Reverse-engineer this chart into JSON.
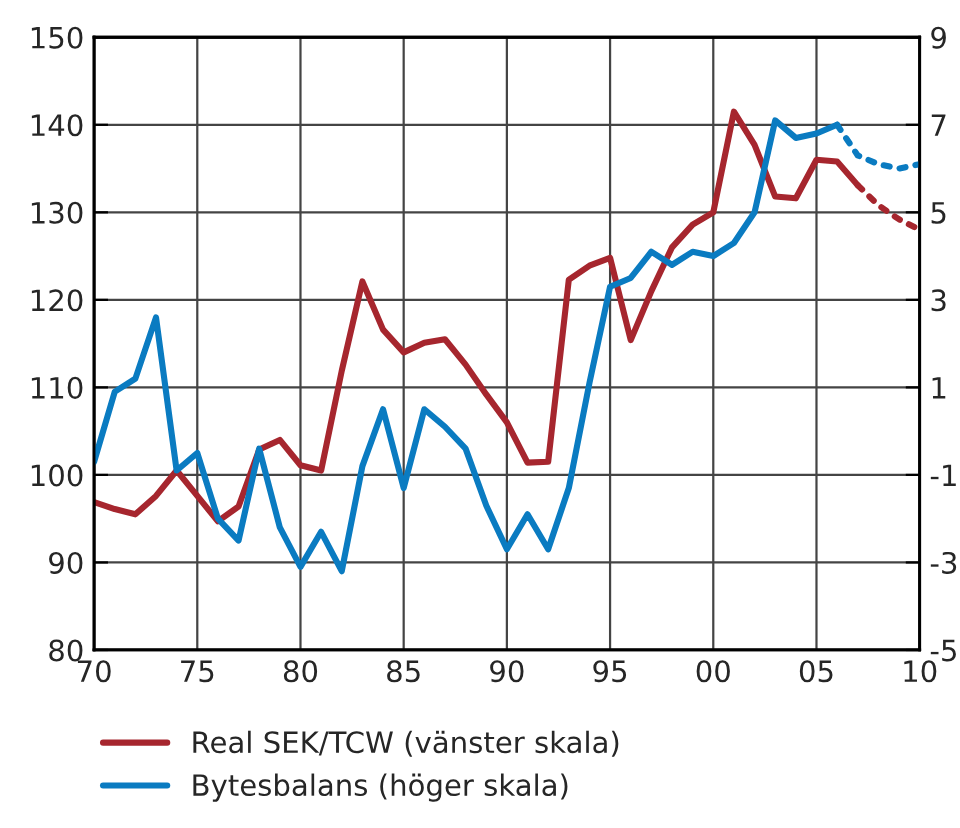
{
  "chart_data": {
    "type": "line",
    "xlim": [
      1970,
      2010
    ],
    "xticks": [
      {
        "value": 1970,
        "label": "70"
      },
      {
        "value": 1975,
        "label": "75"
      },
      {
        "value": 1980,
        "label": "80"
      },
      {
        "value": 1985,
        "label": "85"
      },
      {
        "value": 1990,
        "label": "90"
      },
      {
        "value": 1995,
        "label": "95"
      },
      {
        "value": 2000,
        "label": "00"
      },
      {
        "value": 2005,
        "label": "05"
      },
      {
        "value": 2010,
        "label": "10"
      }
    ],
    "ylim": [
      80,
      150
    ],
    "yticks": [
      80,
      90,
      100,
      110,
      120,
      130,
      140,
      150
    ],
    "y2lim": [
      -5,
      9
    ],
    "y2ticks": [
      -5,
      -3,
      -1,
      1,
      3,
      5,
      7,
      9
    ],
    "grid": true,
    "legend": "bottom",
    "series": [
      {
        "name": "Real SEK/TCW (vänster skala)",
        "color": "#a6262e",
        "line_style": "solid",
        "x": [
          1970,
          1971,
          1972,
          1973,
          1974,
          1975,
          1976,
          1977,
          1978,
          1979,
          1980,
          1981,
          1982,
          1983,
          1984,
          1985,
          1986,
          1987,
          1988,
          1989,
          1990,
          1991,
          1992,
          1993,
          1994,
          1995,
          1996,
          1997,
          1998,
          1999,
          2000,
          2001,
          2002,
          2003,
          2004,
          2005,
          2006,
          2007
        ],
        "values": [
          96.9,
          96.1,
          95.5,
          97.6,
          100.5,
          97.6,
          94.7,
          96.4,
          102.9,
          104,
          101.1,
          100.5,
          111.9,
          122.1,
          116.6,
          114,
          115.1,
          115.5,
          112.6,
          109.2,
          106,
          101.4,
          101.5,
          122.3,
          123.9,
          124.8,
          115.4,
          121,
          126,
          128.6,
          130,
          141.5,
          137.7,
          131.8,
          131.6,
          136,
          135.8,
          133.1
        ]
      },
      {
        "color": "#a6262e",
        "line_style": "dotted",
        "x": [
          2007,
          2008,
          2009,
          2010
        ],
        "values": [
          133.1,
          130.8,
          129.2,
          128
        ]
      },
      {
        "name": "Bytesbalans (höger skala)",
        "color": "#0a7bc1",
        "line_style": "solid",
        "axis": "y2",
        "x": [
          1970,
          1971,
          1972,
          1973,
          1974,
          1975,
          1976,
          1977,
          1978,
          1979,
          1980,
          1981,
          1982,
          1983,
          1984,
          1985,
          1986,
          1987,
          1988,
          1989,
          1990,
          1991,
          1992,
          1993,
          1994,
          1995,
          1996,
          1997,
          1998,
          1999,
          2000,
          2001,
          2002,
          2003,
          2004,
          2005,
          2006
        ],
        "values": [
          -0.7,
          0.9,
          1.2,
          2.6,
          -0.9,
          -0.5,
          -2,
          -2.5,
          -0.4,
          -2.2,
          -3.1,
          -2.3,
          -3.2,
          -0.8,
          0.5,
          -1.3,
          0.5,
          0.1,
          -0.4,
          -1.7,
          -2.7,
          -1.9,
          -2.7,
          -1.3,
          1.1,
          3.3,
          3.5,
          4.1,
          3.8,
          4.1,
          4,
          4.3,
          5,
          7.1,
          6.7,
          6.8,
          7
        ]
      },
      {
        "color": "#0a7bc1",
        "line_style": "dotted",
        "axis": "y2",
        "x": [
          2006,
          2007,
          2008,
          2009,
          2010
        ],
        "values": [
          7,
          6.3,
          6.1,
          6,
          6.1
        ]
      }
    ]
  }
}
